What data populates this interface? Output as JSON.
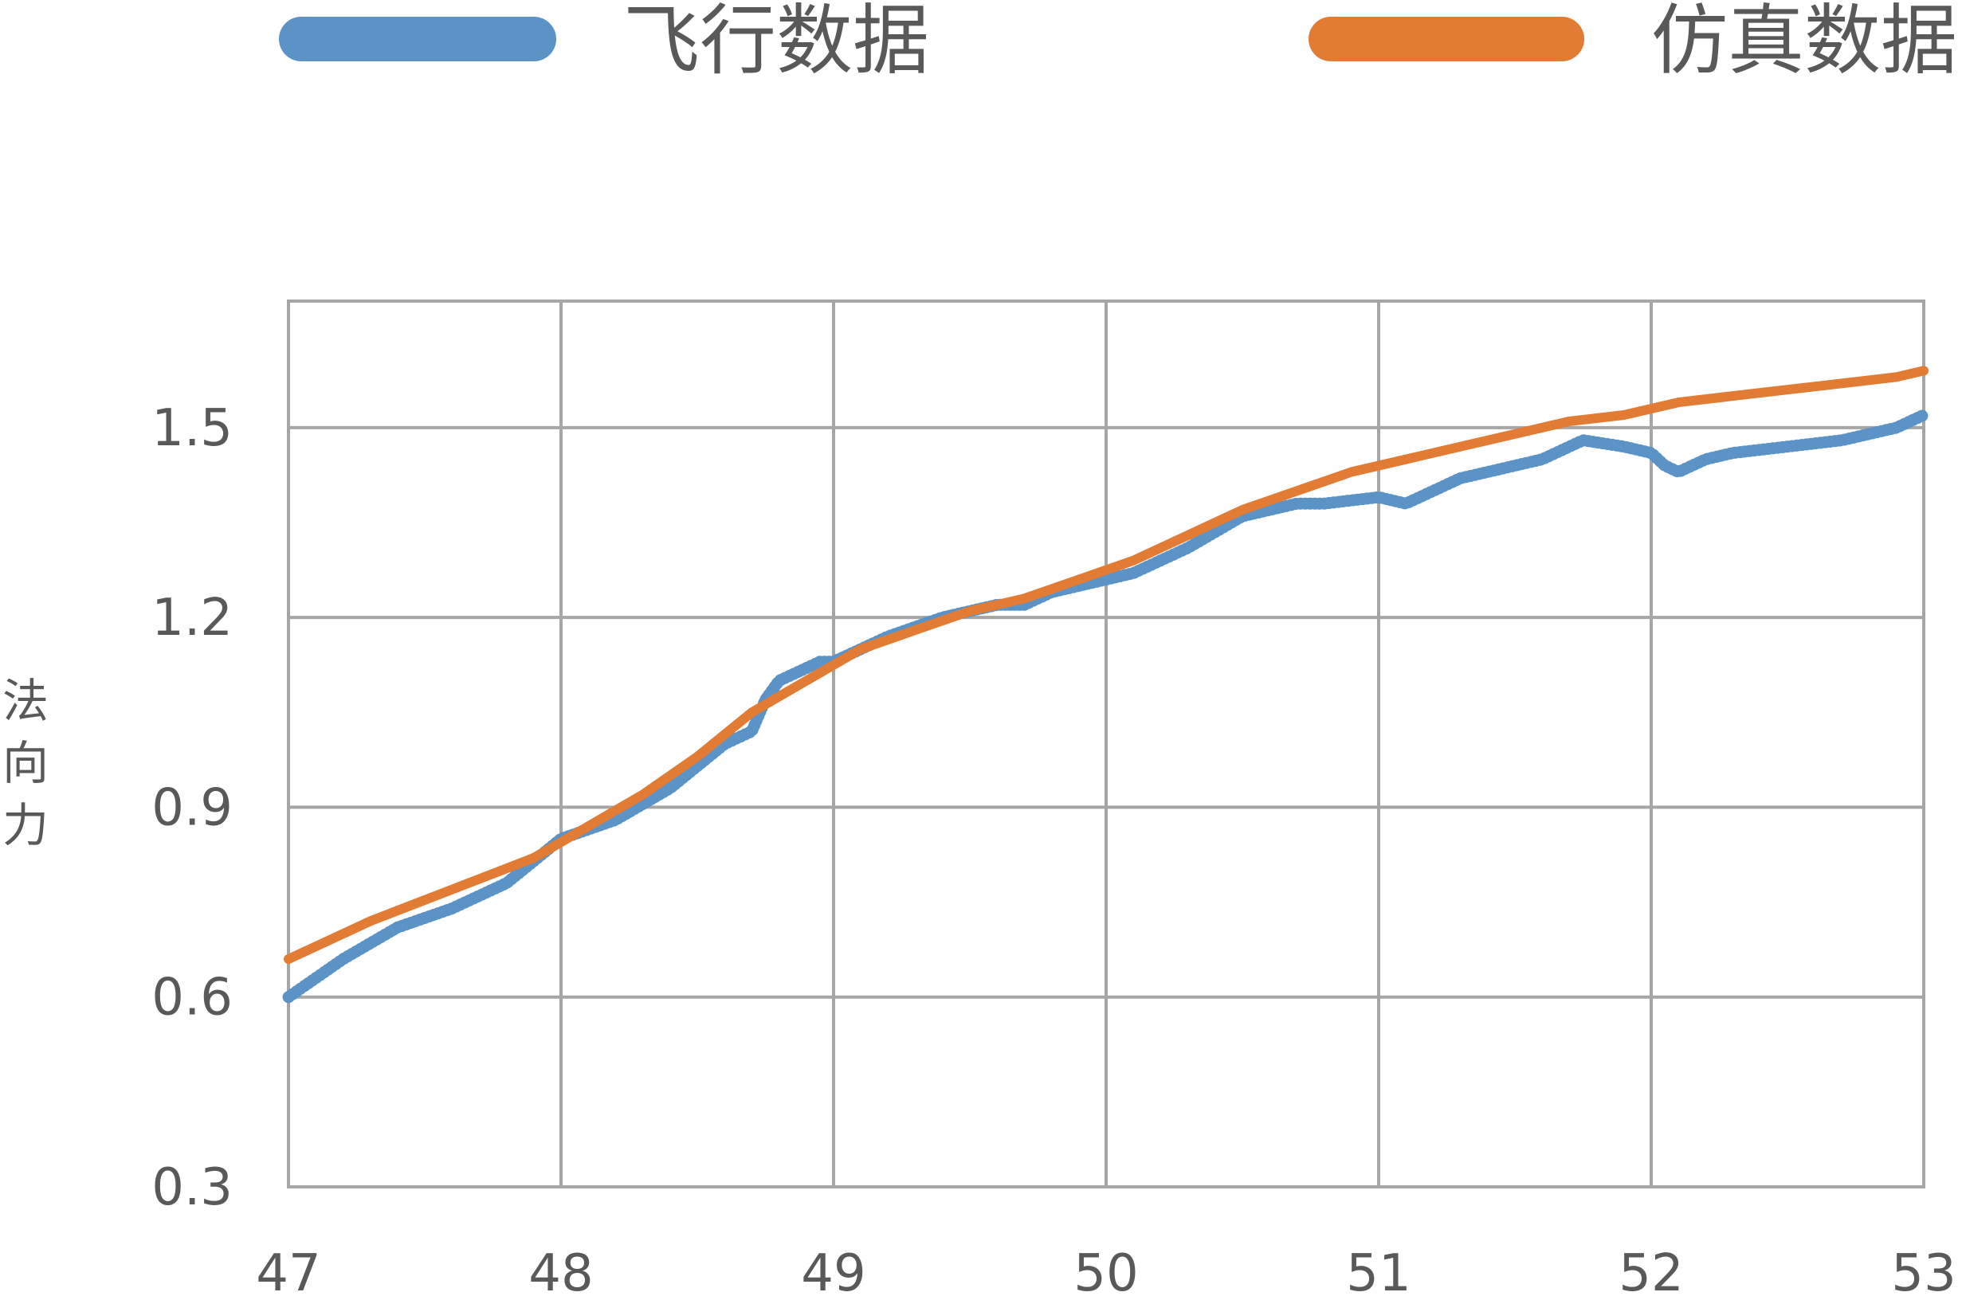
{
  "chart_data": {
    "type": "line",
    "title": "",
    "xlabel": "",
    "ylabel": "法向力",
    "xlim": [
      47,
      53
    ],
    "ylim": [
      0.3,
      1.7
    ],
    "x_ticks": [
      47,
      48,
      49,
      50,
      51,
      52,
      53
    ],
    "y_ticks": [
      0.3,
      0.6,
      0.9,
      1.2,
      1.5
    ],
    "x_tick_labels": [
      "47",
      "48",
      "49",
      "50",
      "51",
      "52",
      "53"
    ],
    "y_tick_labels": [
      "0.3",
      "0.6",
      "0.9",
      "1.2",
      "1.5"
    ],
    "grid": true,
    "legend_position": "top",
    "series": [
      {
        "name": "飞行数据",
        "color": "#5B93C7",
        "style": "dotted-thick",
        "x": [
          47.0,
          47.2,
          47.4,
          47.6,
          47.8,
          48.0,
          48.2,
          48.4,
          48.6,
          48.7,
          48.75,
          48.8,
          48.9,
          48.95,
          49.0,
          49.1,
          49.2,
          49.4,
          49.6,
          49.7,
          49.8,
          50.0,
          50.1,
          50.3,
          50.5,
          50.7,
          50.8,
          51.0,
          51.1,
          51.3,
          51.4,
          51.6,
          51.75,
          51.9,
          52.0,
          52.05,
          52.1,
          52.2,
          52.3,
          52.5,
          52.7,
          52.9,
          53.0
        ],
        "values": [
          0.6,
          0.66,
          0.71,
          0.74,
          0.78,
          0.85,
          0.88,
          0.93,
          1.0,
          1.02,
          1.07,
          1.1,
          1.12,
          1.13,
          1.13,
          1.15,
          1.17,
          1.2,
          1.22,
          1.22,
          1.24,
          1.26,
          1.27,
          1.31,
          1.36,
          1.38,
          1.38,
          1.39,
          1.38,
          1.42,
          1.43,
          1.45,
          1.48,
          1.47,
          1.46,
          1.44,
          1.43,
          1.45,
          1.46,
          1.47,
          1.48,
          1.5,
          1.52
        ]
      },
      {
        "name": "仿真数据",
        "color": "#E27B34",
        "style": "solid",
        "x": [
          47.0,
          47.3,
          47.6,
          47.9,
          48.1,
          48.3,
          48.5,
          48.7,
          48.9,
          49.1,
          49.3,
          49.5,
          49.7,
          49.9,
          50.1,
          50.3,
          50.5,
          50.7,
          50.9,
          51.1,
          51.3,
          51.5,
          51.7,
          51.9,
          52.1,
          52.3,
          52.5,
          52.7,
          52.9,
          53.0
        ],
        "values": [
          0.66,
          0.72,
          0.77,
          0.82,
          0.87,
          0.92,
          0.98,
          1.05,
          1.1,
          1.15,
          1.18,
          1.21,
          1.23,
          1.26,
          1.29,
          1.33,
          1.37,
          1.4,
          1.43,
          1.45,
          1.47,
          1.49,
          1.51,
          1.52,
          1.54,
          1.55,
          1.56,
          1.57,
          1.58,
          1.59
        ]
      }
    ],
    "colors": {
      "grid": "#A6A6A6",
      "text": "#595959",
      "background": "#FFFFFF"
    }
  }
}
